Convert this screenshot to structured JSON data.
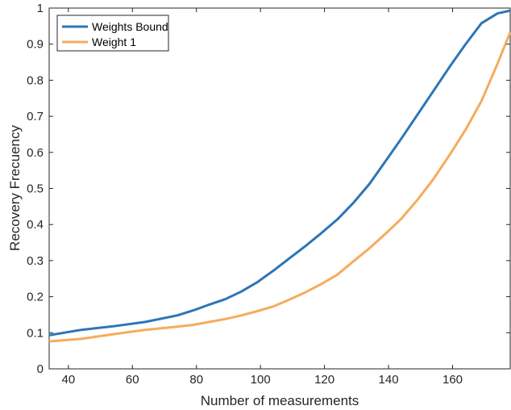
{
  "chart_data": {
    "type": "line",
    "xlabel": "Number of measurements",
    "ylabel": "Recovery Frecuency",
    "xlim": [
      34,
      178
    ],
    "ylim": [
      0,
      1
    ],
    "x_ticks": [
      40,
      60,
      80,
      100,
      120,
      140,
      160
    ],
    "x_tick_labels": [
      "40",
      "60",
      "80",
      "100",
      "120",
      "140",
      "160"
    ],
    "y_ticks": [
      0,
      0.1,
      0.2,
      0.3,
      0.4,
      0.5,
      0.6,
      0.7,
      0.8,
      0.9,
      1
    ],
    "y_tick_labels": [
      "0",
      "0.1",
      "0.2",
      "0.3",
      "0.4",
      "0.5",
      "0.6",
      "0.7",
      "0.8",
      "0.9",
      "1"
    ],
    "grid": false,
    "legend_position": "top-left",
    "series": [
      {
        "name": "Weights Bound",
        "color": "#2e75b6",
        "x": [
          34,
          44,
          54,
          64,
          74,
          79,
          84,
          89,
          94,
          99,
          104,
          109,
          114,
          119,
          124,
          129,
          134,
          139,
          144,
          149,
          154,
          159,
          164,
          169,
          174,
          178
        ],
        "y": [
          0.093,
          0.108,
          0.118,
          0.13,
          0.148,
          0.162,
          0.178,
          0.193,
          0.214,
          0.24,
          0.272,
          0.306,
          0.34,
          0.376,
          0.414,
          0.46,
          0.512,
          0.575,
          0.638,
          0.704,
          0.77,
          0.836,
          0.899,
          0.958,
          0.985,
          0.993
        ]
      },
      {
        "name": "Weight 1",
        "color": "#f5ac5b",
        "x": [
          34,
          44,
          54,
          64,
          74,
          79,
          84,
          89,
          94,
          99,
          104,
          109,
          114,
          119,
          124,
          129,
          134,
          139,
          144,
          149,
          154,
          159,
          164,
          169,
          174,
          178
        ],
        "y": [
          0.076,
          0.083,
          0.096,
          0.108,
          0.117,
          0.122,
          0.13,
          0.138,
          0.148,
          0.16,
          0.173,
          0.192,
          0.212,
          0.235,
          0.261,
          0.298,
          0.334,
          0.374,
          0.416,
          0.468,
          0.526,
          0.592,
          0.662,
          0.742,
          0.845,
          0.933
        ]
      }
    ]
  }
}
